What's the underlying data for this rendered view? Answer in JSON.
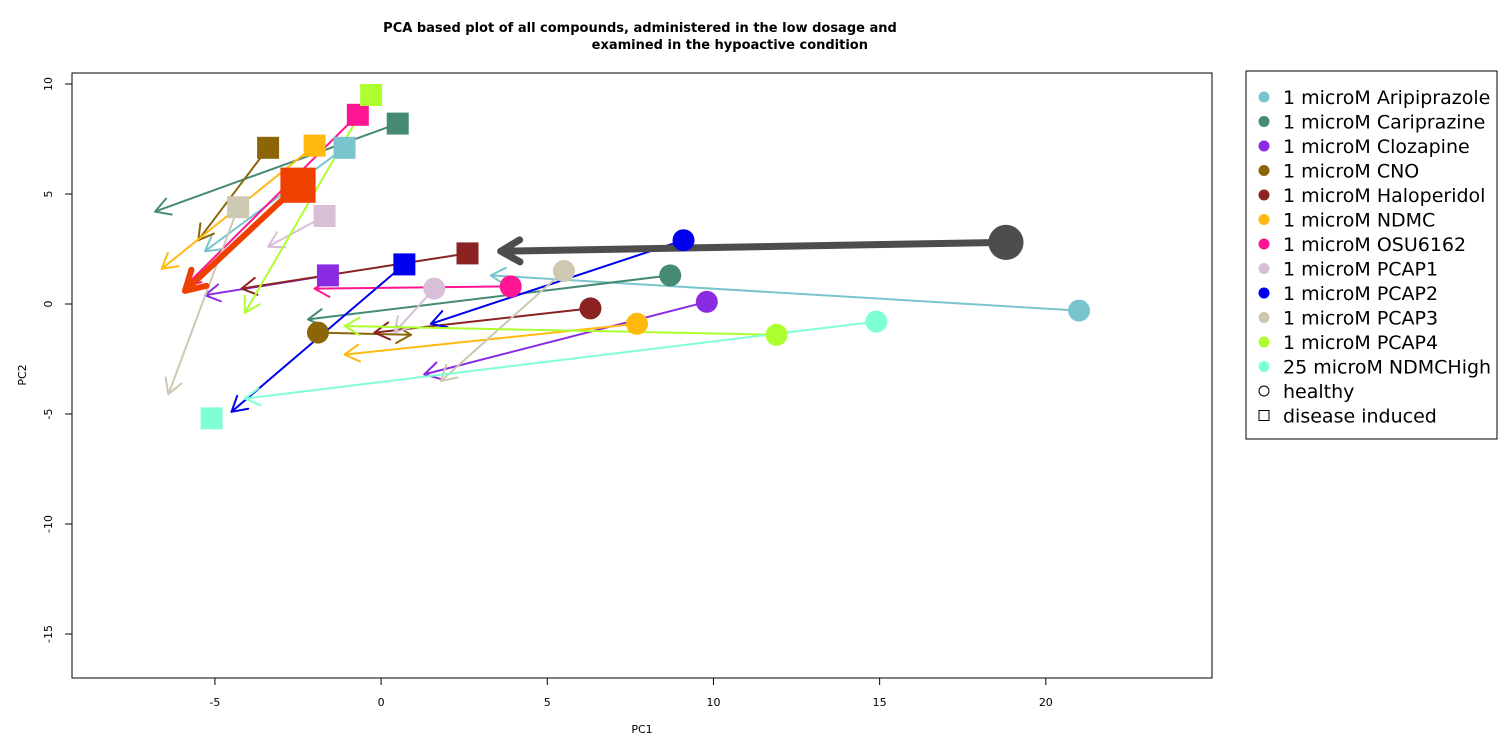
{
  "chart_data": {
    "type": "scatter",
    "title_line1": "PCA based plot of all compounds, administered in the low dosage and",
    "title_line2": "examined in the hypoactive condition",
    "xlabel": "PC1",
    "ylabel": "PC2",
    "xlim": [
      -9.3,
      25
    ],
    "ylim": [
      -17,
      10.5
    ],
    "x_ticks": [
      -5,
      0,
      5,
      10,
      15,
      20
    ],
    "y_ticks": [
      -15,
      -10,
      -5,
      0,
      5,
      10
    ],
    "legend_position": "right",
    "legend": [
      {
        "label": "1 microM Aripiprazole",
        "color": "#7AC5CD",
        "shape": "circle"
      },
      {
        "label": "1 microM Cariprazine",
        "color": "#458B74",
        "shape": "circle"
      },
      {
        "label": "1 microM Clozapine",
        "color": "#8A2BE2",
        "shape": "circle"
      },
      {
        "label": "1 microM CNO",
        "color": "#8B6508",
        "shape": "circle"
      },
      {
        "label": "1 microM Haloperidol",
        "color": "#8B2323",
        "shape": "circle"
      },
      {
        "label": "1 microM NDMC",
        "color": "#FFB90F",
        "shape": "circle"
      },
      {
        "label": "1 microM OSU6162",
        "color": "#FF1493",
        "shape": "circle"
      },
      {
        "label": "1 microM PCAP1",
        "color": "#D8BFD8",
        "shape": "circle"
      },
      {
        "label": "1 microM PCAP2",
        "color": "#0000EE",
        "shape": "circle"
      },
      {
        "label": "1 microM PCAP3",
        "color": "#CDC8B1",
        "shape": "circle"
      },
      {
        "label": "1 microM PCAP4",
        "color": "#ADFF2F",
        "shape": "circle"
      },
      {
        "label": "25 microM NDMCHigh",
        "color": "#7FFFD4",
        "shape": "circle"
      },
      {
        "label": "healthy",
        "color": "#000000",
        "shape": "open-circle"
      },
      {
        "label": "disease induced",
        "color": "#000000",
        "shape": "open-square"
      }
    ],
    "series": [
      {
        "name": "1 microM Aripiprazole",
        "color": "#7AC5CD",
        "arrow_width": 2,
        "healthy": [
          21.0,
          -0.3
        ],
        "disease": [
          -1.1,
          7.1
        ],
        "arrows": [
          [
            [
              21.0,
              -0.3
            ],
            [
              3.3,
              1.3
            ]
          ],
          [
            [
              -1.1,
              7.1
            ],
            [
              -5.3,
              2.4
            ]
          ]
        ]
      },
      {
        "name": "1 microM Cariprazine",
        "color": "#458B74",
        "arrow_width": 2,
        "healthy": [
          8.7,
          1.3
        ],
        "disease": [
          0.5,
          8.2
        ],
        "arrows": [
          [
            [
              8.7,
              1.3
            ],
            [
              -2.2,
              -0.7
            ]
          ],
          [
            [
              0.5,
              8.2
            ],
            [
              -6.8,
              4.2
            ]
          ]
        ]
      },
      {
        "name": "1 microM Clozapine",
        "color": "#8A2BE2",
        "arrow_width": 2,
        "healthy": [
          9.8,
          0.1
        ],
        "disease": [
          -1.6,
          1.3
        ],
        "arrows": [
          [
            [
              9.8,
              0.1
            ],
            [
              1.3,
              -3.2
            ]
          ],
          [
            [
              -1.6,
              1.3
            ],
            [
              -5.3,
              0.4
            ]
          ]
        ]
      },
      {
        "name": "1 microM CNO",
        "color": "#8B6508",
        "arrow_width": 2,
        "healthy": [
          -1.9,
          -1.3
        ],
        "disease": [
          -3.4,
          7.1
        ],
        "arrows": [
          [
            [
              -1.9,
              -1.3
            ],
            [
              0.9,
              -1.4
            ]
          ],
          [
            [
              -3.4,
              7.1
            ],
            [
              -5.5,
              2.9
            ]
          ]
        ]
      },
      {
        "name": "1 microM Haloperidol",
        "color": "#8B2323",
        "arrow_width": 2,
        "healthy": [
          6.3,
          -0.2
        ],
        "disease": [
          2.6,
          2.3
        ],
        "arrows": [
          [
            [
              6.3,
              -0.2
            ],
            [
              -0.2,
              -1.3
            ]
          ],
          [
            [
              2.6,
              2.3
            ],
            [
              -4.2,
              0.7
            ]
          ]
        ]
      },
      {
        "name": "1 microM NDMC",
        "color": "#FFB90F",
        "arrow_width": 2,
        "healthy": [
          7.7,
          -0.9
        ],
        "disease": [
          -2.0,
          7.2
        ],
        "arrows": [
          [
            [
              7.7,
              -0.9
            ],
            [
              -1.1,
              -2.3
            ]
          ],
          [
            [
              -2.0,
              7.2
            ],
            [
              -6.6,
              1.6
            ]
          ]
        ]
      },
      {
        "name": "1 microM OSU6162",
        "color": "#FF1493",
        "arrow_width": 2,
        "healthy": [
          3.9,
          0.8
        ],
        "disease": [
          -0.7,
          8.6
        ],
        "arrows": [
          [
            [
              3.9,
              0.8
            ],
            [
              -2.0,
              0.7
            ]
          ],
          [
            [
              -0.7,
              8.6
            ],
            [
              -5.9,
              0.8
            ]
          ]
        ]
      },
      {
        "name": "1 microM PCAP1",
        "color": "#D8BFD8",
        "arrow_width": 2,
        "healthy": [
          1.6,
          0.7
        ],
        "disease": [
          -1.7,
          4.0
        ],
        "arrows": [
          [
            [
              1.6,
              0.7
            ],
            [
              0.4,
              -1.3
            ]
          ],
          [
            [
              -1.7,
              4.0
            ],
            [
              -3.4,
              2.6
            ]
          ]
        ]
      },
      {
        "name": "1 microM PCAP2",
        "color": "#0000EE",
        "arrow_width": 2,
        "healthy": [
          9.1,
          2.9
        ],
        "disease": [
          0.7,
          1.8
        ],
        "arrows": [
          [
            [
              9.1,
              2.9
            ],
            [
              1.5,
              -0.9
            ]
          ],
          [
            [
              0.7,
              1.8
            ],
            [
              -4.5,
              -4.9
            ]
          ]
        ]
      },
      {
        "name": "1 microM PCAP3",
        "color": "#CDC8B1",
        "arrow_width": 2,
        "healthy": [
          5.5,
          1.5
        ],
        "disease": [
          -4.3,
          4.4
        ],
        "arrows": [
          [
            [
              5.5,
              1.5
            ],
            [
              1.8,
              -3.5
            ]
          ],
          [
            [
              -4.3,
              4.4
            ],
            [
              -6.4,
              -4.1
            ]
          ]
        ]
      },
      {
        "name": "1 microM PCAP4",
        "color": "#ADFF2F",
        "arrow_width": 2,
        "healthy": [
          11.9,
          -1.4
        ],
        "disease": [
          -0.3,
          9.5
        ],
        "arrows": [
          [
            [
              11.9,
              -1.4
            ],
            [
              -1.1,
              -1.0
            ]
          ],
          [
            [
              -0.3,
              9.5
            ],
            [
              -4.1,
              -0.4
            ]
          ]
        ]
      },
      {
        "name": "25 microM NDMCHigh",
        "color": "#7FFFD4",
        "arrow_width": 2,
        "healthy": [
          14.9,
          -0.8
        ],
        "disease": [
          -5.1,
          -5.2
        ],
        "arrows": [
          [
            [
              14.9,
              -0.8
            ],
            [
              -4.1,
              -4.3
            ]
          ]
        ]
      },
      {
        "name": "",
        "color": "#4D4D4D",
        "arrow_width": 7,
        "size": 1.6,
        "healthy": [
          18.8,
          2.8
        ],
        "disease": null,
        "arrows": [
          [
            [
              18.8,
              2.8
            ],
            [
              3.6,
              2.4
            ]
          ]
        ]
      },
      {
        "name": "",
        "color": "#EE4000",
        "arrow_width": 6,
        "size": 1.6,
        "healthy": null,
        "disease": [
          -2.5,
          5.4
        ],
        "arrows": [
          [
            [
              -2.5,
              5.4
            ],
            [
              -5.9,
              0.6
            ]
          ]
        ]
      }
    ]
  }
}
